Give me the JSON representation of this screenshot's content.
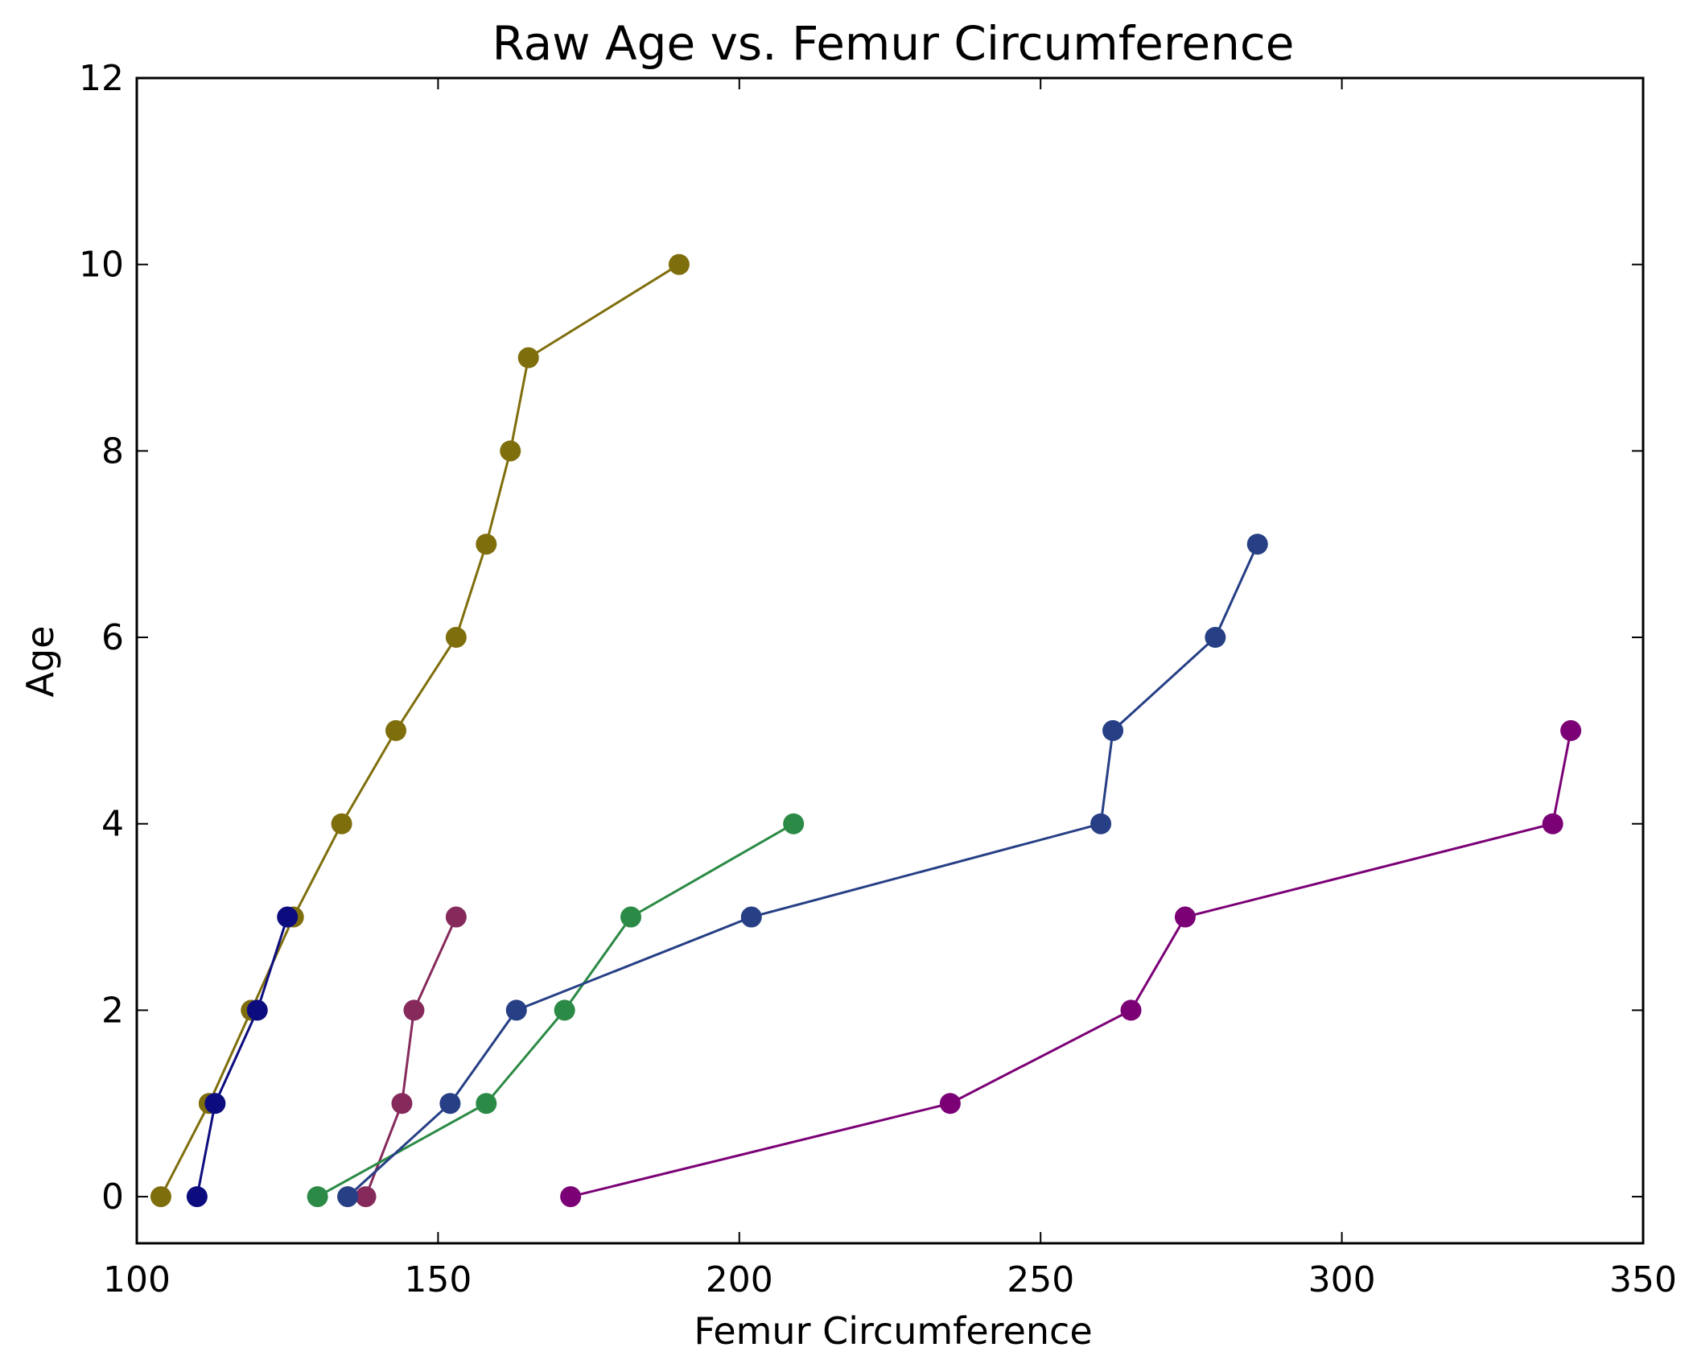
{
  "chart_data": {
    "type": "line",
    "title": "Raw Age vs. Femur Circumference",
    "xlabel": "Femur Circumference",
    "ylabel": "Age",
    "xlim": [
      100,
      350
    ],
    "ylim": [
      -0.5,
      12
    ],
    "xticks": [
      100,
      150,
      200,
      250,
      300,
      350
    ],
    "yticks": [
      0,
      2,
      4,
      6,
      8,
      10,
      12
    ],
    "grid": false,
    "legend": "none",
    "markers": "circle",
    "series": [
      {
        "color": "#7f6e0c",
        "x": [
          104,
          112,
          119,
          126,
          134,
          143,
          153,
          158,
          162,
          165,
          190
        ],
        "y": [
          0,
          1,
          2,
          3,
          4,
          5,
          6,
          7,
          8,
          9,
          10
        ]
      },
      {
        "color": "#0c0c7f",
        "x": [
          110,
          113,
          120,
          125
        ],
        "y": [
          0,
          1,
          2,
          3
        ]
      },
      {
        "color": "#862a5c",
        "x": [
          138,
          144,
          146,
          153
        ],
        "y": [
          0,
          1,
          2,
          3
        ]
      },
      {
        "color": "#2b8a45",
        "x": [
          130,
          158,
          171,
          182,
          209
        ],
        "y": [
          0,
          1,
          2,
          3,
          4
        ]
      },
      {
        "color": "#263f85",
        "x": [
          135,
          152,
          163,
          202,
          260,
          262,
          279,
          286
        ],
        "y": [
          0,
          1,
          2,
          3,
          4,
          5,
          6,
          7
        ]
      },
      {
        "color": "#7b0076",
        "x": [
          172,
          235,
          265,
          274,
          335,
          338
        ],
        "y": [
          0,
          1,
          2,
          3,
          4,
          5
        ]
      }
    ]
  }
}
